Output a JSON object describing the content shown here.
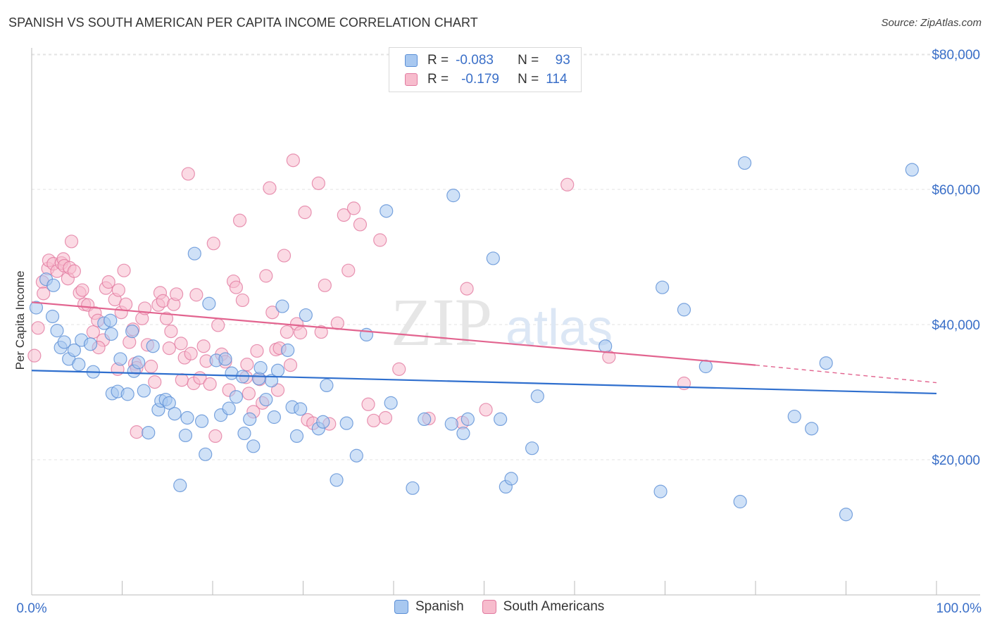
{
  "title": "SPANISH VS SOUTH AMERICAN PER CAPITA INCOME CORRELATION CHART",
  "source": "Source: ZipAtlas.com",
  "watermark": {
    "part1": "ZIP",
    "part2": "atlas"
  },
  "legend": {
    "rows": [
      {
        "r_label": "R =",
        "r_value": "-0.083",
        "n_label": "N =",
        "n_value": "93",
        "color": "#a8c8f0",
        "border": "#5b8fd6"
      },
      {
        "r_label": "R =",
        "r_value": "-0.179",
        "n_label": "N =",
        "n_value": "114",
        "color": "#f7bccd",
        "border": "#e27aa0"
      }
    ]
  },
  "bottom_legend": [
    {
      "label": "Spanish",
      "color": "#a8c8f0",
      "border": "#5b8fd6"
    },
    {
      "label": "South Americans",
      "color": "#f7bccd",
      "border": "#e27aa0"
    }
  ],
  "chart_data": {
    "type": "scatter",
    "title": "SPANISH VS SOUTH AMERICAN PER CAPITA INCOME CORRELATION CHART",
    "xlabel": "",
    "ylabel": "Per Capita Income",
    "xlim": [
      0,
      100
    ],
    "ylim": [
      0,
      82000
    ],
    "x_tick_labels": [
      "0.0%",
      "100.0%"
    ],
    "y_ticks": [
      20000,
      40000,
      60000,
      80000
    ],
    "y_tick_labels": [
      "$20,000",
      "$40,000",
      "$60,000",
      "$80,000"
    ],
    "grid": true,
    "series": [
      {
        "name": "Spanish",
        "color": "#5b8fd6",
        "fill": "#a8c8f0",
        "trend": {
          "x": [
            0,
            100
          ],
          "y": [
            33200,
            29800
          ],
          "color": "#2f6fce"
        },
        "points": [
          [
            0.5,
            42500
          ],
          [
            1.6,
            46700
          ],
          [
            2.3,
            41200
          ],
          [
            2.4,
            45800
          ],
          [
            2.8,
            39100
          ],
          [
            3.2,
            36600
          ],
          [
            3.6,
            37400
          ],
          [
            4.1,
            34900
          ],
          [
            4.7,
            36200
          ],
          [
            5.2,
            34100
          ],
          [
            5.5,
            37700
          ],
          [
            6.5,
            37100
          ],
          [
            6.8,
            33000
          ],
          [
            8.0,
            40200
          ],
          [
            8.7,
            40600
          ],
          [
            8.8,
            38600
          ],
          [
            8.9,
            29800
          ],
          [
            9.5,
            30100
          ],
          [
            9.8,
            34900
          ],
          [
            10.6,
            29700
          ],
          [
            11.1,
            39000
          ],
          [
            11.3,
            33100
          ],
          [
            11.8,
            34400
          ],
          [
            12.4,
            30200
          ],
          [
            12.9,
            24000
          ],
          [
            13.4,
            36800
          ],
          [
            14.0,
            27400
          ],
          [
            14.3,
            28700
          ],
          [
            14.8,
            28900
          ],
          [
            15.2,
            28400
          ],
          [
            15.8,
            26800
          ],
          [
            16.4,
            16200
          ],
          [
            17.0,
            23600
          ],
          [
            17.2,
            26200
          ],
          [
            18.0,
            50500
          ],
          [
            18.8,
            25700
          ],
          [
            19.2,
            20800
          ],
          [
            19.6,
            43100
          ],
          [
            20.4,
            34700
          ],
          [
            20.9,
            26600
          ],
          [
            21.4,
            34900
          ],
          [
            21.8,
            27600
          ],
          [
            22.1,
            32800
          ],
          [
            22.6,
            29300
          ],
          [
            23.3,
            32300
          ],
          [
            23.5,
            23900
          ],
          [
            24.1,
            26000
          ],
          [
            24.5,
            22000
          ],
          [
            25.1,
            32000
          ],
          [
            25.3,
            33600
          ],
          [
            25.9,
            28900
          ],
          [
            26.5,
            31700
          ],
          [
            26.8,
            26300
          ],
          [
            27.2,
            33200
          ],
          [
            27.7,
            42700
          ],
          [
            28.3,
            36200
          ],
          [
            28.8,
            27800
          ],
          [
            29.3,
            23500
          ],
          [
            29.7,
            27500
          ],
          [
            30.3,
            41400
          ],
          [
            31.7,
            24600
          ],
          [
            32.2,
            25600
          ],
          [
            32.6,
            31000
          ],
          [
            33.7,
            17000
          ],
          [
            34.8,
            25400
          ],
          [
            35.9,
            20600
          ],
          [
            37.0,
            38500
          ],
          [
            39.2,
            56800
          ],
          [
            39.7,
            28400
          ],
          [
            42.1,
            15800
          ],
          [
            43.4,
            26000
          ],
          [
            46.4,
            25300
          ],
          [
            46.6,
            59100
          ],
          [
            47.7,
            23900
          ],
          [
            48.2,
            26000
          ],
          [
            51.0,
            49800
          ],
          [
            51.8,
            26000
          ],
          [
            52.4,
            16000
          ],
          [
            53.0,
            17200
          ],
          [
            55.3,
            21700
          ],
          [
            55.9,
            29400
          ],
          [
            63.4,
            36800
          ],
          [
            69.5,
            15300
          ],
          [
            69.7,
            45500
          ],
          [
            72.1,
            42200
          ],
          [
            74.5,
            33800
          ],
          [
            78.3,
            13800
          ],
          [
            78.8,
            63900
          ],
          [
            84.3,
            26400
          ],
          [
            86.2,
            24600
          ],
          [
            87.8,
            34300
          ],
          [
            90.0,
            11900
          ],
          [
            97.3,
            62900
          ]
        ]
      },
      {
        "name": "South Americans",
        "color": "#e27aa0",
        "fill": "#f7bccd",
        "trend": {
          "x": [
            0,
            80
          ],
          "y": [
            43300,
            34000
          ],
          "color": "#e2648f"
        },
        "trend_dashed": {
          "x": [
            80,
            100
          ],
          "y": [
            34000,
            31400
          ]
        },
        "points": [
          [
            0.3,
            35400
          ],
          [
            0.7,
            39500
          ],
          [
            1.2,
            46300
          ],
          [
            1.3,
            44600
          ],
          [
            1.8,
            48300
          ],
          [
            1.9,
            49500
          ],
          [
            2.4,
            49000
          ],
          [
            2.8,
            47900
          ],
          [
            3.3,
            49100
          ],
          [
            3.5,
            49700
          ],
          [
            3.6,
            48700
          ],
          [
            4.0,
            46800
          ],
          [
            4.2,
            48400
          ],
          [
            4.4,
            52300
          ],
          [
            4.7,
            47900
          ],
          [
            5.3,
            44700
          ],
          [
            5.6,
            45100
          ],
          [
            5.8,
            43000
          ],
          [
            6.2,
            42900
          ],
          [
            6.8,
            38900
          ],
          [
            7.0,
            41700
          ],
          [
            7.3,
            40600
          ],
          [
            7.9,
            37700
          ],
          [
            8.2,
            45400
          ],
          [
            8.5,
            46300
          ],
          [
            9.2,
            43700
          ],
          [
            9.6,
            45100
          ],
          [
            9.9,
            41800
          ],
          [
            10.2,
            48000
          ],
          [
            10.4,
            43000
          ],
          [
            10.8,
            37400
          ],
          [
            11.2,
            39300
          ],
          [
            11.4,
            34200
          ],
          [
            11.6,
            33600
          ],
          [
            12.2,
            40900
          ],
          [
            12.5,
            42400
          ],
          [
            12.8,
            37000
          ],
          [
            13.2,
            33800
          ],
          [
            13.6,
            31500
          ],
          [
            14.0,
            42900
          ],
          [
            14.2,
            44700
          ],
          [
            14.5,
            43500
          ],
          [
            14.9,
            40900
          ],
          [
            15.2,
            36500
          ],
          [
            15.4,
            39000
          ],
          [
            15.7,
            43000
          ],
          [
            16.0,
            44500
          ],
          [
            16.5,
            37200
          ],
          [
            16.9,
            35100
          ],
          [
            17.3,
            62300
          ],
          [
            17.6,
            35700
          ],
          [
            17.9,
            31300
          ],
          [
            18.2,
            44400
          ],
          [
            18.6,
            32100
          ],
          [
            19.0,
            36800
          ],
          [
            19.3,
            34600
          ],
          [
            19.7,
            31200
          ],
          [
            20.1,
            52000
          ],
          [
            20.6,
            39900
          ],
          [
            21.0,
            35600
          ],
          [
            21.4,
            34500
          ],
          [
            21.8,
            30300
          ],
          [
            22.3,
            46400
          ],
          [
            22.6,
            45500
          ],
          [
            23.0,
            55400
          ],
          [
            23.3,
            43600
          ],
          [
            23.7,
            32200
          ],
          [
            24.0,
            29800
          ],
          [
            24.5,
            27100
          ],
          [
            24.9,
            36100
          ],
          [
            25.2,
            31900
          ],
          [
            25.5,
            28400
          ],
          [
            25.9,
            47200
          ],
          [
            26.3,
            60200
          ],
          [
            26.6,
            41800
          ],
          [
            27.0,
            36300
          ],
          [
            27.4,
            36500
          ],
          [
            27.9,
            50200
          ],
          [
            28.2,
            38900
          ],
          [
            28.6,
            34000
          ],
          [
            28.9,
            64300
          ],
          [
            29.3,
            40100
          ],
          [
            29.7,
            38800
          ],
          [
            30.2,
            56600
          ],
          [
            30.5,
            25900
          ],
          [
            31.1,
            25400
          ],
          [
            31.7,
            60900
          ],
          [
            32.0,
            38900
          ],
          [
            32.4,
            45800
          ],
          [
            32.9,
            25300
          ],
          [
            33.8,
            40200
          ],
          [
            34.5,
            56200
          ],
          [
            35.0,
            48000
          ],
          [
            35.6,
            57200
          ],
          [
            36.3,
            54800
          ],
          [
            37.2,
            28200
          ],
          [
            37.8,
            25800
          ],
          [
            38.5,
            52500
          ],
          [
            39.1,
            26200
          ],
          [
            40.6,
            33400
          ],
          [
            43.9,
            26100
          ],
          [
            47.6,
            25500
          ],
          [
            48.1,
            45300
          ],
          [
            50.2,
            27400
          ],
          [
            59.2,
            60700
          ],
          [
            63.8,
            35200
          ],
          [
            72.1,
            31300
          ],
          [
            11.6,
            24100
          ],
          [
            20.3,
            23500
          ],
          [
            27.2,
            30300
          ],
          [
            7.4,
            36600
          ],
          [
            16.6,
            31800
          ],
          [
            23.8,
            34100
          ],
          [
            9.5,
            33400
          ]
        ]
      }
    ]
  }
}
